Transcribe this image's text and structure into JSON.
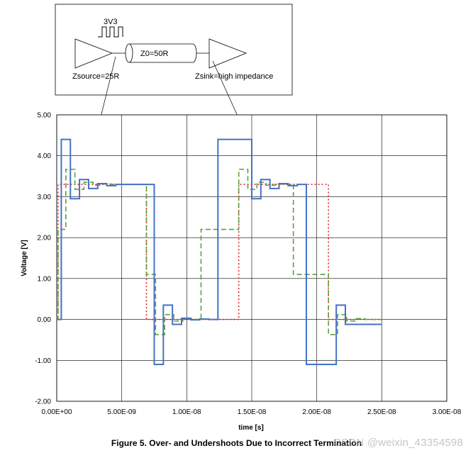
{
  "colors": {
    "line_direct": "#4472C4",
    "line_half": "#5E9E3E",
    "line_source": "#E32A2A",
    "grid": "#000000"
  },
  "inset": {
    "pulse_label": "3V3",
    "line_label": "Z0=50R",
    "source_label": "Zsource=25R",
    "sink_label": "Zsink=high impedance"
  },
  "caption": "Figure 5. Over- and Undershoots Due to Incorrect Termination",
  "watermark": "CSDN @weixin_43354598",
  "chart_data": {
    "type": "line",
    "xlabel": "time [s]",
    "ylabel": "Voltage [V]",
    "xlim": [
      0,
      3e-08
    ],
    "ylim": [
      -2,
      5
    ],
    "grid": true,
    "x_tick_labels": [
      "0.00E+00",
      "5.00E-09",
      "1.00E-08",
      "1.50E-08",
      "2.00E-08",
      "2.50E-08",
      "3.00E-08"
    ],
    "x_ticks": [
      0,
      5e-09,
      1e-08,
      1.5e-08,
      2e-08,
      2.5e-08,
      3e-08
    ],
    "y_tick_labels": [
      "5.00",
      "4.00",
      "3.00",
      "2.00",
      "1.00",
      "0.00",
      "-1.00",
      "-2.00"
    ],
    "y_ticks": [
      5,
      4,
      3,
      2,
      1,
      0,
      -1,
      -2
    ],
    "series": [
      {
        "style": "solid",
        "x": [
          0,
          3.5e-10,
          3.5e-10,
          1.05e-09,
          1.05e-09,
          1.75e-09,
          1.75e-09,
          2.45e-09,
          2.45e-09,
          3.15e-09,
          3.15e-09,
          3.85e-09,
          3.85e-09,
          4.55e-09,
          4.55e-09,
          7.5e-09,
          7.5e-09,
          8.2e-09,
          8.2e-09,
          8.9e-09,
          8.9e-09,
          9.6e-09,
          9.6e-09,
          1.03e-08,
          1.03e-08,
          1.1e-08,
          1.1e-08,
          1.17e-08,
          1.17e-08,
          1.24e-08,
          1.24e-08,
          1.5e-08,
          1.5e-08,
          1.57e-08,
          1.57e-08,
          1.64e-08,
          1.64e-08,
          1.71e-08,
          1.71e-08,
          1.78e-08,
          1.78e-08,
          1.85e-08,
          1.85e-08,
          1.92e-08,
          1.92e-08,
          2.15e-08,
          2.15e-08,
          2.22e-08,
          2.22e-08,
          2.29e-08,
          2.29e-08,
          2.36e-08,
          2.36e-08,
          2.43e-08,
          2.43e-08,
          2.5e-08
        ],
        "y": [
          0,
          0,
          4.4,
          4.4,
          2.95,
          2.95,
          3.42,
          3.42,
          3.2,
          3.2,
          3.32,
          3.32,
          3.27,
          3.27,
          3.3,
          3.3,
          -1.1,
          -1.1,
          0.35,
          0.35,
          -0.12,
          -0.12,
          0.03,
          0.03,
          -0.01,
          -0.01,
          0.01,
          0.01,
          0,
          0,
          4.4,
          4.4,
          2.95,
          2.95,
          3.42,
          3.42,
          3.2,
          3.2,
          3.32,
          3.32,
          3.27,
          3.27,
          3.3,
          3.3,
          -1.1,
          -1.1,
          0.35,
          0.35,
          -0.12,
          -0.12,
          -0.12,
          -0.12,
          -0.12,
          -0.12,
          -0.12,
          -0.12
        ]
      },
      {
        "style": "dashed",
        "x": [
          0,
          1e-10,
          1e-10,
          7e-10,
          7e-10,
          1.4e-09,
          1.4e-09,
          2.1e-09,
          2.1e-09,
          2.8e-09,
          2.8e-09,
          3.5e-09,
          3.5e-09,
          4.2e-09,
          4.2e-09,
          6.9e-09,
          6.9e-09,
          7.6e-09,
          7.6e-09,
          8.3e-09,
          8.3e-09,
          9e-09,
          9e-09,
          9.7e-09,
          9.7e-09,
          1.04e-08,
          1.04e-08,
          1.11e-08,
          1.11e-08,
          1.4e-08,
          1.4e-08,
          1.47e-08,
          1.47e-08,
          1.54e-08,
          1.54e-08,
          1.61e-08,
          1.61e-08,
          1.68e-08,
          1.68e-08,
          1.75e-08,
          1.75e-08,
          1.82e-08,
          1.82e-08,
          2.09e-08,
          2.09e-08,
          2.16e-08,
          2.16e-08,
          2.23e-08,
          2.23e-08,
          2.3e-08,
          2.3e-08,
          2.37e-08,
          2.37e-08,
          2.44e-08,
          2.44e-08,
          2.5e-08
        ],
        "y": [
          0,
          0,
          2.2,
          2.2,
          3.67,
          3.67,
          3.18,
          3.18,
          3.35,
          3.35,
          3.28,
          3.28,
          3.31,
          3.31,
          3.3,
          3.3,
          1.1,
          1.1,
          -0.37,
          -0.37,
          0.12,
          0.12,
          -0.04,
          -0.04,
          0.02,
          0.02,
          0,
          0,
          2.2,
          2.2,
          3.67,
          3.67,
          3.18,
          3.18,
          3.35,
          3.35,
          3.28,
          3.28,
          3.31,
          3.31,
          3.3,
          3.3,
          1.1,
          1.1,
          -0.37,
          -0.37,
          0.12,
          0.12,
          -0.04,
          -0.04,
          0.02,
          0.02,
          0,
          0,
          0,
          0
        ]
      },
      {
        "style": "dotted",
        "x": [
          0,
          1e-10,
          1e-10,
          6.9e-09,
          6.9e-09,
          1.4e-08,
          1.4e-08,
          2.09e-08,
          2.09e-08,
          2.5e-08
        ],
        "y": [
          0,
          0,
          3.3,
          3.3,
          0,
          0,
          3.3,
          3.3,
          0,
          0
        ]
      }
    ]
  }
}
